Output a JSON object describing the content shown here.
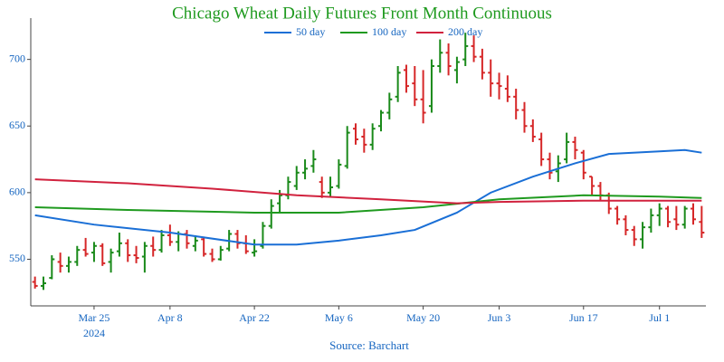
{
  "chart_data": {
    "type": "ohlc",
    "title": "Chicago Wheat Daily Futures Front Month Continuous",
    "title_color": "#1f9a1f",
    "source": "Source: Barchart",
    "x": [
      "2024-03-14",
      "2024-03-15",
      "2024-03-18",
      "2024-03-19",
      "2024-03-20",
      "2024-03-21",
      "2024-03-22",
      "2024-03-25",
      "2024-03-26",
      "2024-03-27",
      "2024-03-28",
      "2024-04-01",
      "2024-04-02",
      "2024-04-03",
      "2024-04-04",
      "2024-04-05",
      "2024-04-08",
      "2024-04-09",
      "2024-04-10",
      "2024-04-11",
      "2024-04-12",
      "2024-04-15",
      "2024-04-16",
      "2024-04-17",
      "2024-04-18",
      "2024-04-19",
      "2024-04-22",
      "2024-04-23",
      "2024-04-24",
      "2024-04-25",
      "2024-04-26",
      "2024-04-29",
      "2024-04-30",
      "2024-05-01",
      "2024-05-02",
      "2024-05-03",
      "2024-05-06",
      "2024-05-07",
      "2024-05-08",
      "2024-05-09",
      "2024-05-10",
      "2024-05-13",
      "2024-05-14",
      "2024-05-15",
      "2024-05-16",
      "2024-05-17",
      "2024-05-20",
      "2024-05-21",
      "2024-05-22",
      "2024-05-23",
      "2024-05-24",
      "2024-05-28",
      "2024-05-29",
      "2024-05-30",
      "2024-05-31",
      "2024-06-03",
      "2024-06-04",
      "2024-06-05",
      "2024-06-06",
      "2024-06-07",
      "2024-06-10",
      "2024-06-11",
      "2024-06-12",
      "2024-06-13",
      "2024-06-14",
      "2024-06-17",
      "2024-06-18",
      "2024-06-20",
      "2024-06-21",
      "2024-06-24",
      "2024-06-25",
      "2024-06-26",
      "2024-06-27",
      "2024-06-28",
      "2024-07-01",
      "2024-07-02",
      "2024-07-03",
      "2024-07-05",
      "2024-07-08",
      "2024-07-09"
    ],
    "open": [
      533,
      530,
      536,
      548,
      545,
      548,
      557,
      555,
      560,
      548,
      556,
      562,
      553,
      552,
      560,
      557,
      568,
      563,
      569,
      560,
      565,
      554,
      550,
      558,
      569,
      562,
      555,
      560,
      575,
      592,
      598,
      605,
      615,
      620,
      608,
      600,
      605,
      620,
      648,
      642,
      636,
      650,
      660,
      672,
      692,
      682,
      670,
      665,
      695,
      705,
      692,
      700,
      710,
      702,
      690,
      682,
      678,
      672,
      662,
      650,
      640,
      625,
      616,
      625,
      638,
      630,
      612,
      605,
      598,
      588,
      580,
      572,
      565,
      574,
      583,
      588,
      580,
      576,
      588,
      578
    ],
    "high": [
      537,
      537,
      553,
      555,
      552,
      560,
      566,
      563,
      562,
      558,
      570,
      565,
      560,
      563,
      567,
      572,
      576,
      571,
      572,
      568,
      567,
      558,
      560,
      572,
      572,
      568,
      565,
      578,
      595,
      602,
      612,
      620,
      625,
      632,
      612,
      612,
      625,
      650,
      652,
      648,
      652,
      662,
      675,
      695,
      696,
      695,
      692,
      700,
      715,
      712,
      702,
      720,
      718,
      708,
      700,
      690,
      688,
      678,
      668,
      655,
      645,
      630,
      628,
      645,
      642,
      632,
      612,
      608,
      600,
      590,
      583,
      575,
      578,
      588,
      592,
      590,
      590,
      590,
      592,
      590
    ],
    "low": [
      528,
      527,
      535,
      540,
      540,
      545,
      552,
      548,
      545,
      540,
      552,
      548,
      547,
      540,
      552,
      555,
      560,
      556,
      558,
      556,
      552,
      548,
      549,
      556,
      558,
      554,
      552,
      558,
      573,
      585,
      595,
      602,
      610,
      615,
      596,
      597,
      603,
      618,
      636,
      630,
      632,
      646,
      655,
      668,
      675,
      665,
      652,
      660,
      690,
      688,
      682,
      695,
      698,
      685,
      672,
      670,
      668,
      655,
      645,
      638,
      620,
      610,
      608,
      622,
      625,
      610,
      598,
      594,
      584,
      576,
      568,
      560,
      558,
      570,
      575,
      574,
      572,
      573,
      576,
      566
    ],
    "close": [
      530,
      532,
      550,
      545,
      548,
      557,
      554,
      560,
      547,
      555,
      562,
      553,
      551,
      560,
      557,
      568,
      563,
      569,
      562,
      564,
      554,
      550,
      557,
      569,
      562,
      556,
      556,
      575,
      590,
      598,
      608,
      615,
      618,
      625,
      600,
      604,
      621,
      645,
      640,
      636,
      648,
      660,
      670,
      690,
      680,
      670,
      660,
      695,
      705,
      695,
      698,
      710,
      702,
      690,
      682,
      680,
      672,
      662,
      650,
      642,
      625,
      615,
      622,
      638,
      632,
      615,
      605,
      598,
      588,
      580,
      572,
      565,
      574,
      583,
      588,
      578,
      576,
      588,
      580,
      570
    ],
    "up_color": "#1a8a1a",
    "down_color": "#d62728",
    "lines": [
      {
        "name": "50 day",
        "color": "#1a6fd6",
        "x": [
          "2024-03-14",
          "2024-03-25",
          "2024-04-08",
          "2024-04-22",
          "2024-04-29",
          "2024-05-06",
          "2024-05-13",
          "2024-05-17",
          "2024-05-24",
          "2024-05-31",
          "2024-06-07",
          "2024-06-14",
          "2024-06-21",
          "2024-07-01",
          "2024-07-05",
          "2024-07-09"
        ],
        "values": [
          583,
          576,
          570,
          561,
          561,
          564,
          568,
          572,
          585,
          600,
          612,
          622,
          629,
          631,
          632,
          630
        ]
      },
      {
        "name": "100 day",
        "color": "#1f9a1f",
        "x": [
          "2024-03-14",
          "2024-04-01",
          "2024-04-22",
          "2024-05-06",
          "2024-05-20",
          "2024-06-03",
          "2024-06-17",
          "2024-07-01",
          "2024-07-09"
        ],
        "values": [
          589,
          587,
          585,
          585,
          589,
          595,
          598,
          597,
          596
        ]
      },
      {
        "name": "200 day",
        "color": "#d1223e",
        "x": [
          "2024-03-14",
          "2024-04-01",
          "2024-04-15",
          "2024-04-29",
          "2024-05-13",
          "2024-05-24",
          "2024-06-03",
          "2024-06-17",
          "2024-07-01",
          "2024-07-09"
        ],
        "values": [
          610,
          607,
          603,
          598,
          595,
          592,
          593,
          594,
          594,
          594
        ]
      }
    ],
    "ylim": [
      515,
      731
    ],
    "yticks": [
      550,
      600,
      650,
      700
    ],
    "xticks": [
      {
        "value": "2024-03-25",
        "label": "Mar 25\n2024"
      },
      {
        "value": "2024-04-08",
        "label": "Apr 8"
      },
      {
        "value": "2024-04-22",
        "label": "Apr 22"
      },
      {
        "value": "2024-05-06",
        "label": "May 6"
      },
      {
        "value": "2024-05-20",
        "label": "May 20"
      },
      {
        "value": "2024-06-03",
        "label": "Jun 3"
      },
      {
        "value": "2024-06-17",
        "label": "Jun 17"
      },
      {
        "value": "2024-07-01",
        "label": "Jul 1"
      }
    ],
    "axis_label_color": "#1565c0",
    "legend": "top"
  }
}
